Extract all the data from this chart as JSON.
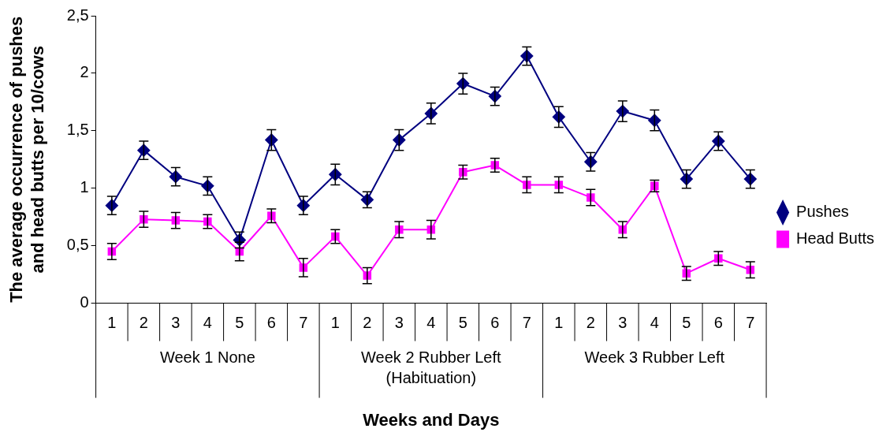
{
  "chart_data": {
    "type": "line",
    "xlabel": "Weeks and Days",
    "ylabel": "The average occurrence of pushes and head butts per 10/cows",
    "categories": [
      "1",
      "2",
      "3",
      "4",
      "5",
      "6",
      "7",
      "1",
      "2",
      "3",
      "4",
      "5",
      "6",
      "7",
      "1",
      "2",
      "3",
      "4",
      "5",
      "6",
      "7"
    ],
    "annotations": [
      "Week 1 None",
      "Week 2 Rubber Left (Habituation)",
      "Week 3 Rubber Left"
    ],
    "series": [
      {
        "name": "Pushes",
        "color": "#000080",
        "marker": "diamond",
        "values": [
          0.85,
          1.33,
          1.1,
          1.02,
          0.55,
          1.42,
          0.85,
          1.12,
          0.9,
          1.42,
          1.65,
          1.91,
          1.8,
          2.15,
          1.62,
          1.23,
          1.67,
          1.59,
          1.08,
          1.41,
          1.08
        ],
        "errors": [
          0.08,
          0.08,
          0.08,
          0.08,
          0.07,
          0.09,
          0.08,
          0.09,
          0.07,
          0.09,
          0.09,
          0.09,
          0.08,
          0.08,
          0.09,
          0.08,
          0.09,
          0.09,
          0.08,
          0.08,
          0.08
        ]
      },
      {
        "name": "Head Butts",
        "color": "#ff00ff",
        "marker": "square",
        "values": [
          0.45,
          0.73,
          0.72,
          0.71,
          0.45,
          0.76,
          0.31,
          0.58,
          0.24,
          0.64,
          0.64,
          1.14,
          1.2,
          1.03,
          1.03,
          0.92,
          0.64,
          1.02,
          0.26,
          0.39,
          0.29
        ],
        "errors": [
          0.07,
          0.07,
          0.07,
          0.06,
          0.08,
          0.06,
          0.08,
          0.06,
          0.07,
          0.07,
          0.08,
          0.06,
          0.06,
          0.07,
          0.07,
          0.07,
          0.07,
          0.05,
          0.06,
          0.06,
          0.07
        ]
      }
    ],
    "ylim": [
      0,
      2.5
    ],
    "yticks": [
      0,
      {
        "value": 0.5,
        "label": "0,5"
      },
      1,
      {
        "value": 1.5,
        "label": "1,5"
      },
      2,
      {
        "value": 2.5,
        "label": "2,5"
      }
    ],
    "grid": false,
    "legend": "right",
    "line_style": "solid"
  }
}
